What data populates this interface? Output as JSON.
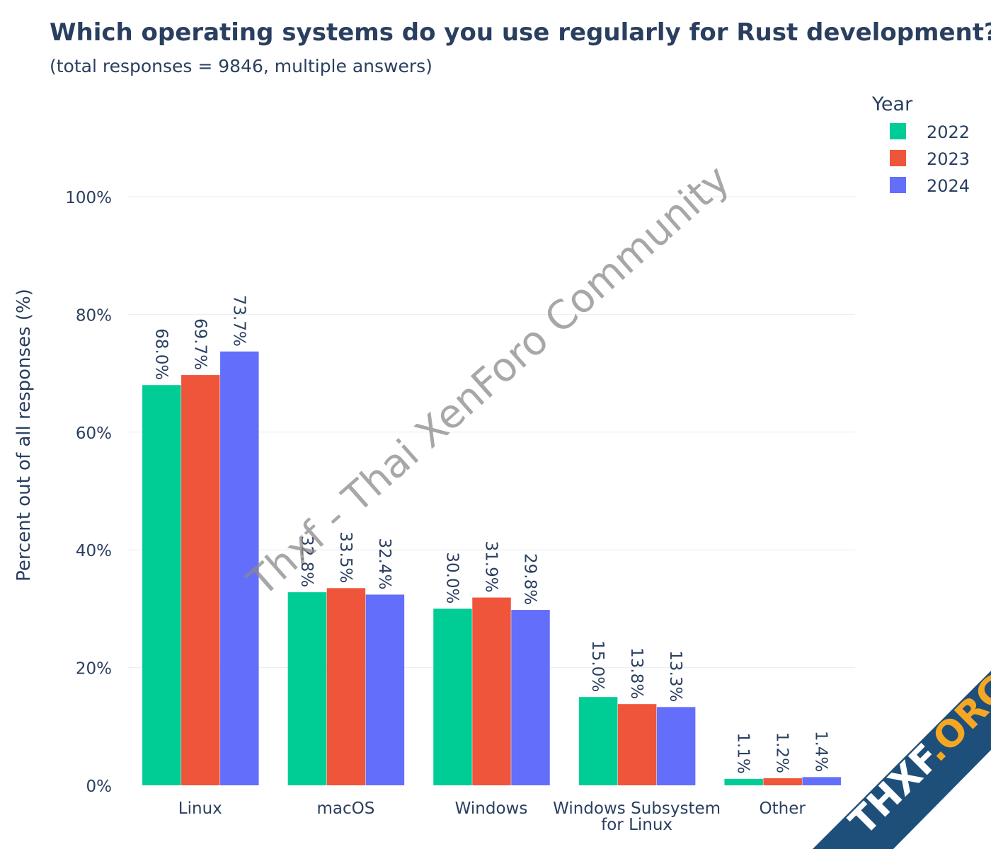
{
  "title": "Which operating systems do you use regularly for Rust development?",
  "subtitle": "(total responses = 9846, multiple answers)",
  "watermark": "Thxf - Thai XenForo Community",
  "badge": {
    "part1": "THXF",
    "part2": ".ORG"
  },
  "chart_data": {
    "type": "bar",
    "categories": [
      "Linux",
      "macOS",
      "Windows",
      "Windows Subsystem for Linux",
      "Other"
    ],
    "category_label_lines": [
      [
        "Linux"
      ],
      [
        "macOS"
      ],
      [
        "Windows"
      ],
      [
        "Windows Subsystem",
        "for Linux"
      ],
      [
        "Other"
      ]
    ],
    "series": [
      {
        "name": "2022",
        "color": "#00cc96",
        "values": [
          68.0,
          32.8,
          30.0,
          15.0,
          1.1
        ]
      },
      {
        "name": "2023",
        "color": "#ef553b",
        "values": [
          69.7,
          33.5,
          31.9,
          13.8,
          1.2
        ]
      },
      {
        "name": "2024",
        "color": "#636efa",
        "values": [
          73.7,
          32.4,
          29.8,
          13.3,
          1.4
        ]
      }
    ],
    "value_format": "0.0%",
    "ylabel": "Percent out of all responses (%)",
    "yticks": [
      0,
      20,
      40,
      60,
      80,
      100
    ],
    "ytick_labels": [
      "0%",
      "20%",
      "40%",
      "60%",
      "80%",
      "100%"
    ],
    "ylim": [
      0,
      100
    ],
    "legend_title": "Year",
    "legend_position": "top-right",
    "grid": true
  }
}
